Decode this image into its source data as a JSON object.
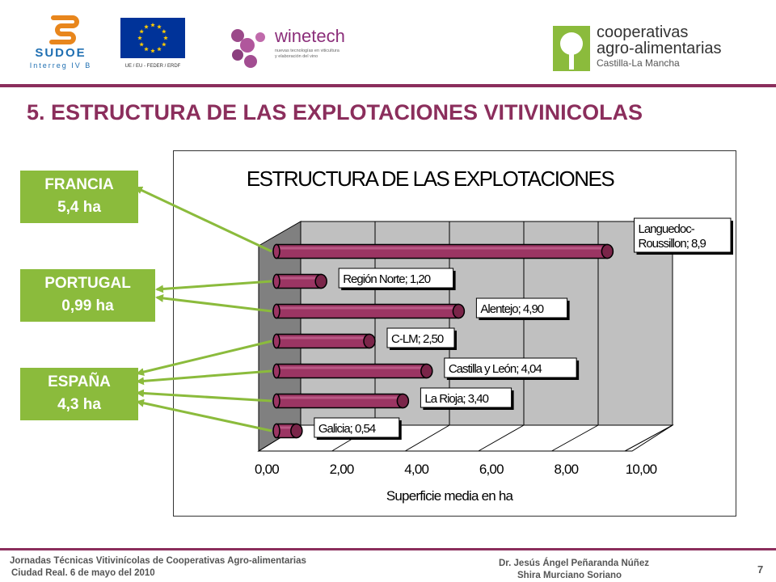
{
  "header": {
    "logos": [
      {
        "name": "sudoe-logo",
        "line1": "SUDOE",
        "line2": "Interreg IV B"
      },
      {
        "name": "eu-logo",
        "caption": "UE / EU - FEDER / ERDF"
      },
      {
        "name": "winetech-logo",
        "title": "winetech",
        "tagline1": "nuevas tecnologías en viticultura",
        "tagline2": "y elaboración del vino"
      },
      {
        "name": "cooperativas-logo",
        "line1": "cooperativas",
        "line2": "agro-alimentarias",
        "line3": "Castilla-La Mancha"
      }
    ]
  },
  "page_title": "5. ESTRUCTURA DE LAS EXPLOTACIONES VITIVINICOLAS",
  "callouts": [
    {
      "country": "FRANCIA",
      "value": "5,4 ha"
    },
    {
      "country": "PORTUGAL",
      "value": "0,99 ha"
    },
    {
      "country": "ESPAÑA",
      "value": "4,3 ha"
    }
  ],
  "chart_data": {
    "type": "bar",
    "orientation": "horizontal",
    "style": "3d-cylinder",
    "title": "ESTRUCTURA DE LAS EXPLOTACIONES",
    "xlabel": "Superficie media en ha",
    "ylabel": "",
    "xlim": [
      0,
      10
    ],
    "x_ticks": [
      "0,00",
      "2,00",
      "4,00",
      "6,00",
      "8,00",
      "10,00"
    ],
    "grid": true,
    "categories": [
      "Languedoc-Roussillon",
      "Región Norte",
      "Alentejo",
      "C-LM",
      "Castilla y León",
      "La Rioja",
      "Galicia"
    ],
    "values": [
      8.9,
      1.2,
      4.9,
      2.5,
      4.04,
      3.4,
      0.54
    ],
    "data_labels": [
      [
        "Languedoc-",
        "Roussillon; 8,9"
      ],
      [
        "Región Norte; 1,20"
      ],
      [
        "Alentejo; 4,90"
      ],
      [
        "C-LM; 2,50"
      ],
      [
        "Castilla y León; 4,04"
      ],
      [
        "La Rioja; 3,40"
      ],
      [
        "Galicia; 0,54"
      ]
    ],
    "bar_color": "#9b3563",
    "wall_color": "#c0c0c0"
  },
  "footer": {
    "left_line1": "Jornadas Técnicas Vitivinícolas de Cooperativas Agro-alimentarias",
    "left_line2": "Ciudad Real. 6 de mayo del 2010",
    "right_line1": "Dr. Jesús Ángel Peñaranda Núñez",
    "right_line2": "Shira Murciano Soriano",
    "page_number": "7"
  },
  "colors": {
    "accent": "#8b2e5c",
    "callout_green": "#8bbb3c",
    "arrow_green": "#8bbb3c"
  }
}
